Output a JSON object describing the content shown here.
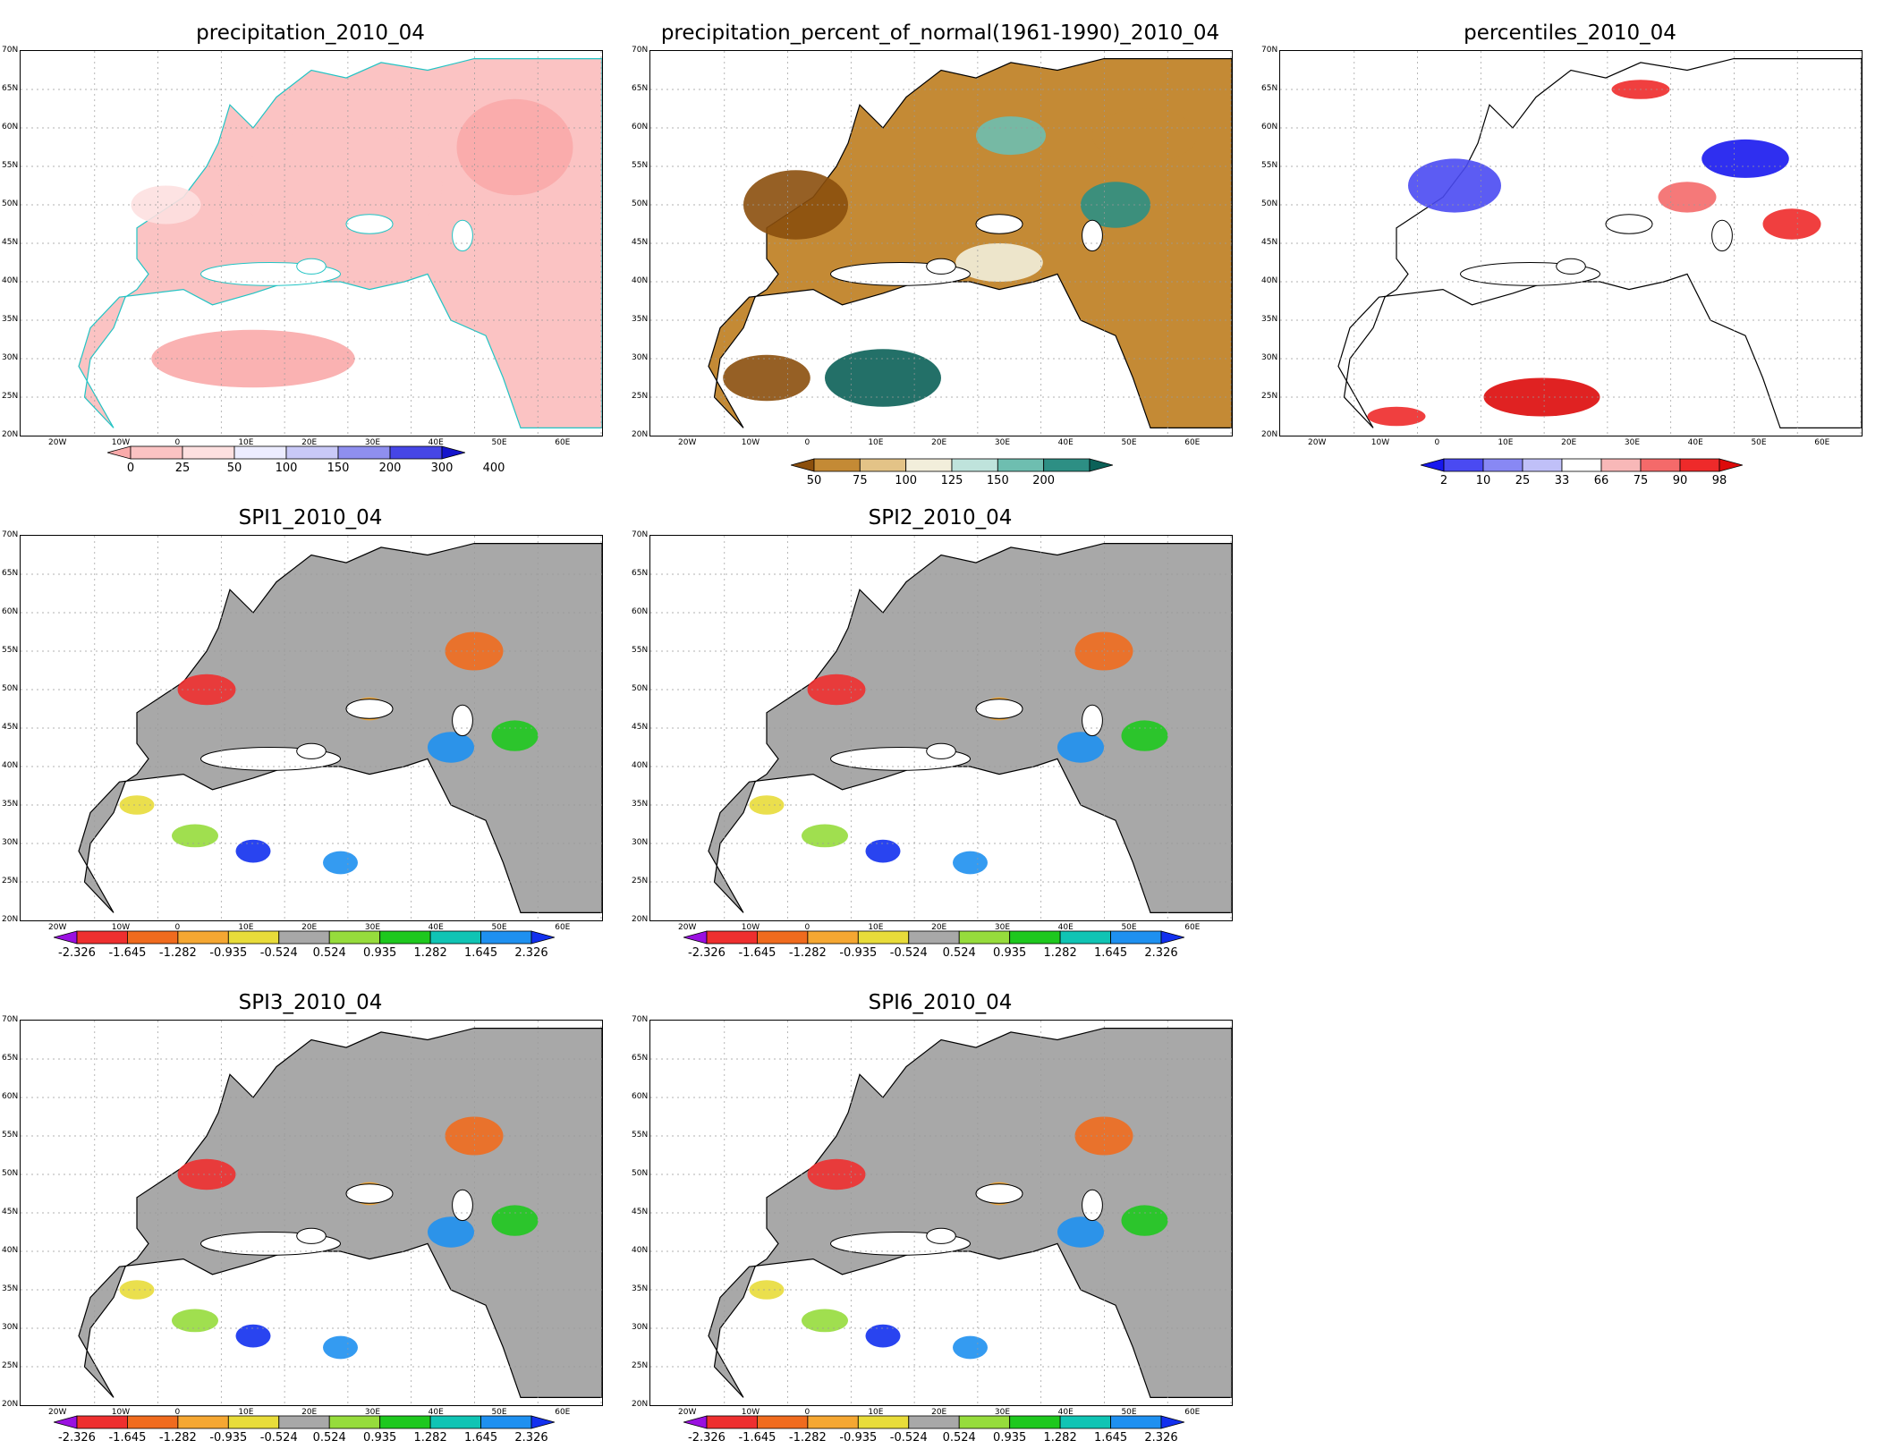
{
  "lat_labels": [
    "70N",
    "65N",
    "60N",
    "55N",
    "50N",
    "45N",
    "40N",
    "35N",
    "30N",
    "25N",
    "20N"
  ],
  "lon_labels": [
    "20W",
    "10W",
    "0",
    "10E",
    "20E",
    "30E",
    "40E",
    "50E",
    "60E"
  ],
  "panels": [
    {
      "title": "precipitation_2010_04",
      "scheme": "precip"
    },
    {
      "title": "precipitation_percent_of_normal(1961-1990)_2010_04",
      "scheme": "pct"
    },
    {
      "title": "percentiles_2010_04",
      "scheme": "perc"
    },
    {
      "title": "SPI1_2010_04",
      "scheme": "spi"
    },
    {
      "title": "SPI2_2010_04",
      "scheme": "spi"
    },
    {
      "title": "SPI3_2010_04",
      "scheme": "spi"
    },
    {
      "title": "SPI6_2010_04",
      "scheme": "spi"
    }
  ],
  "colorbars": {
    "precip": {
      "labels": [
        "0",
        "25",
        "50",
        "100",
        "150",
        "200",
        "300",
        "400"
      ],
      "colors": [
        "#f9aaaa",
        "#fbc3c3",
        "#fde0e0",
        "#ececff",
        "#c9c9f7",
        "#8f8fef",
        "#4646e6",
        "#1515cc"
      ]
    },
    "pct": {
      "labels": [
        "50",
        "75",
        "100",
        "125",
        "150",
        "200"
      ],
      "colors": [
        "#8b4f0d",
        "#c48a35",
        "#e3c387",
        "#f2eedb",
        "#bfe3dc",
        "#6ebeb0",
        "#2d8f84",
        "#0b6158"
      ]
    },
    "perc": {
      "labels": [
        "2",
        "10",
        "25",
        "33",
        "66",
        "75",
        "90",
        "98"
      ],
      "colors": [
        "#1818ee",
        "#4a4af2",
        "#8888f4",
        "#c0c0f8",
        "#ffffff",
        "#f8b8b8",
        "#f46a6a",
        "#ee2a2a",
        "#dd0a0a"
      ]
    },
    "spi": {
      "labels": [
        "-2.326",
        "-1.645",
        "-1.282",
        "-0.935",
        "-0.524",
        "0.524",
        "0.935",
        "1.282",
        "1.645",
        "2.326"
      ],
      "colors": [
        "#9a10e0",
        "#ee2f2f",
        "#f06b1e",
        "#f5a732",
        "#e8dc3a",
        "#a8a8a8",
        "#96dc3c",
        "#1ec81e",
        "#10c4b4",
        "#1e90f0",
        "#1230ee"
      ]
    }
  }
}
